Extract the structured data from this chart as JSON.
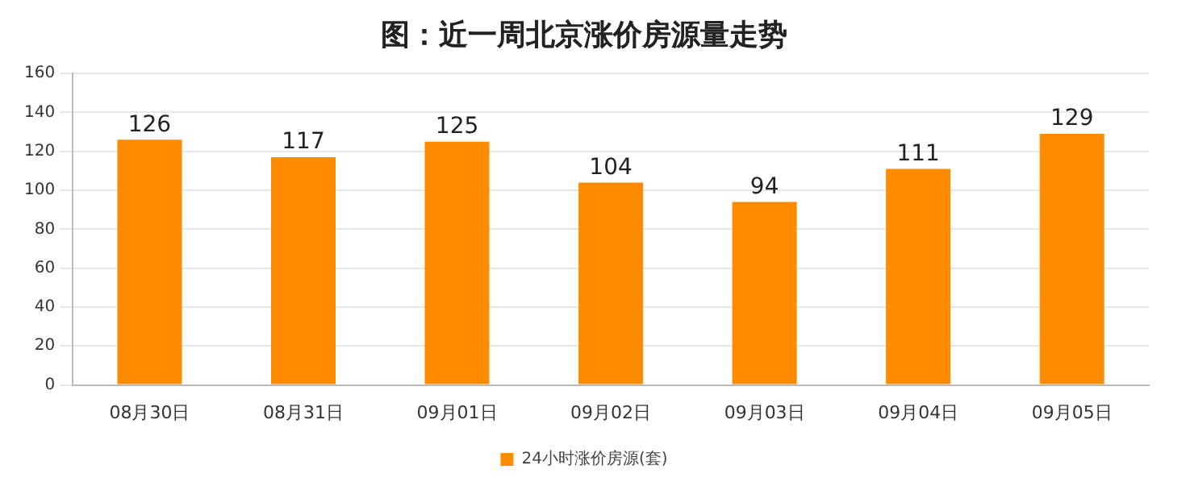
{
  "chart_data": {
    "type": "bar",
    "title": "图：近一周北京涨价房源量走势",
    "categories": [
      "08月30日",
      "08月31日",
      "09月01日",
      "09月02日",
      "09月03日",
      "09月04日",
      "09月05日"
    ],
    "series": [
      {
        "name": "24小时涨价房源(套)",
        "color": "#ff8c00",
        "values": [
          126,
          117,
          125,
          104,
          94,
          111,
          129
        ]
      }
    ],
    "ylim": [
      0,
      160
    ],
    "yticks": [
      0,
      20,
      40,
      60,
      80,
      100,
      120,
      140,
      160
    ],
    "grid": "y",
    "legend": "bottom",
    "data_labels": true
  }
}
